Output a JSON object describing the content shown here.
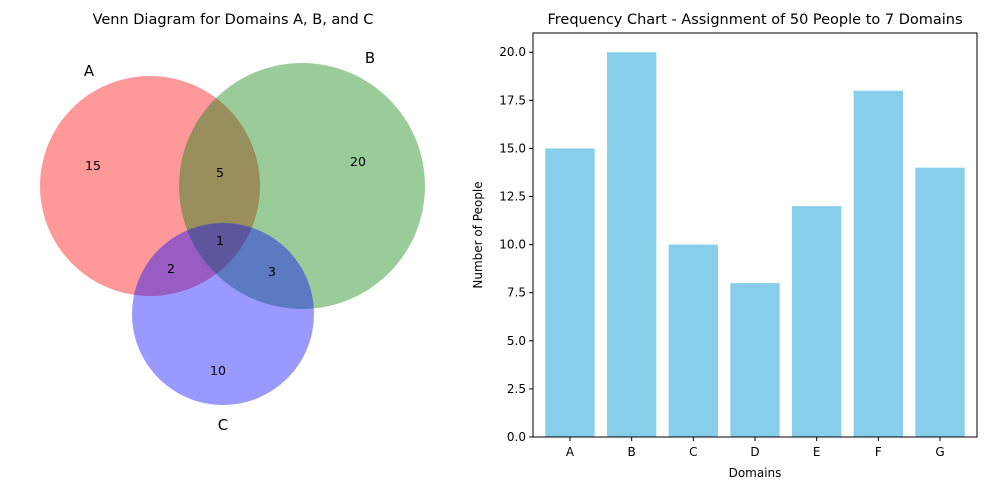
{
  "chart_data": [
    {
      "type": "venn",
      "title": "Venn Diagram for Domains A, B, and C",
      "sets": [
        {
          "label": "A",
          "color": "#ff0000"
        },
        {
          "label": "B",
          "color": "#008000"
        },
        {
          "label": "C",
          "color": "#0000ff"
        }
      ],
      "regions": [
        {
          "sets": "A",
          "value": "15"
        },
        {
          "sets": "B",
          "value": "20"
        },
        {
          "sets": "C",
          "value": "10"
        },
        {
          "sets": "AB",
          "value": "5"
        },
        {
          "sets": "AC",
          "value": "2"
        },
        {
          "sets": "BC",
          "value": "3"
        },
        {
          "sets": "ABC",
          "value": "1"
        }
      ]
    },
    {
      "type": "bar",
      "title": "Frequency Chart - Assignment of 50 People to 7 Domains",
      "xlabel": "Domains",
      "ylabel": "Number of People",
      "categories": [
        "A",
        "B",
        "C",
        "D",
        "E",
        "F",
        "G"
      ],
      "values": [
        15,
        20,
        10,
        8,
        12,
        18,
        14
      ],
      "ylim": [
        0,
        21
      ],
      "yticks": [
        "0.0",
        "2.5",
        "5.0",
        "7.5",
        "10.0",
        "12.5",
        "15.0",
        "17.5",
        "20.0"
      ],
      "bar_color": "#87ceeb",
      "grid": false
    }
  ]
}
